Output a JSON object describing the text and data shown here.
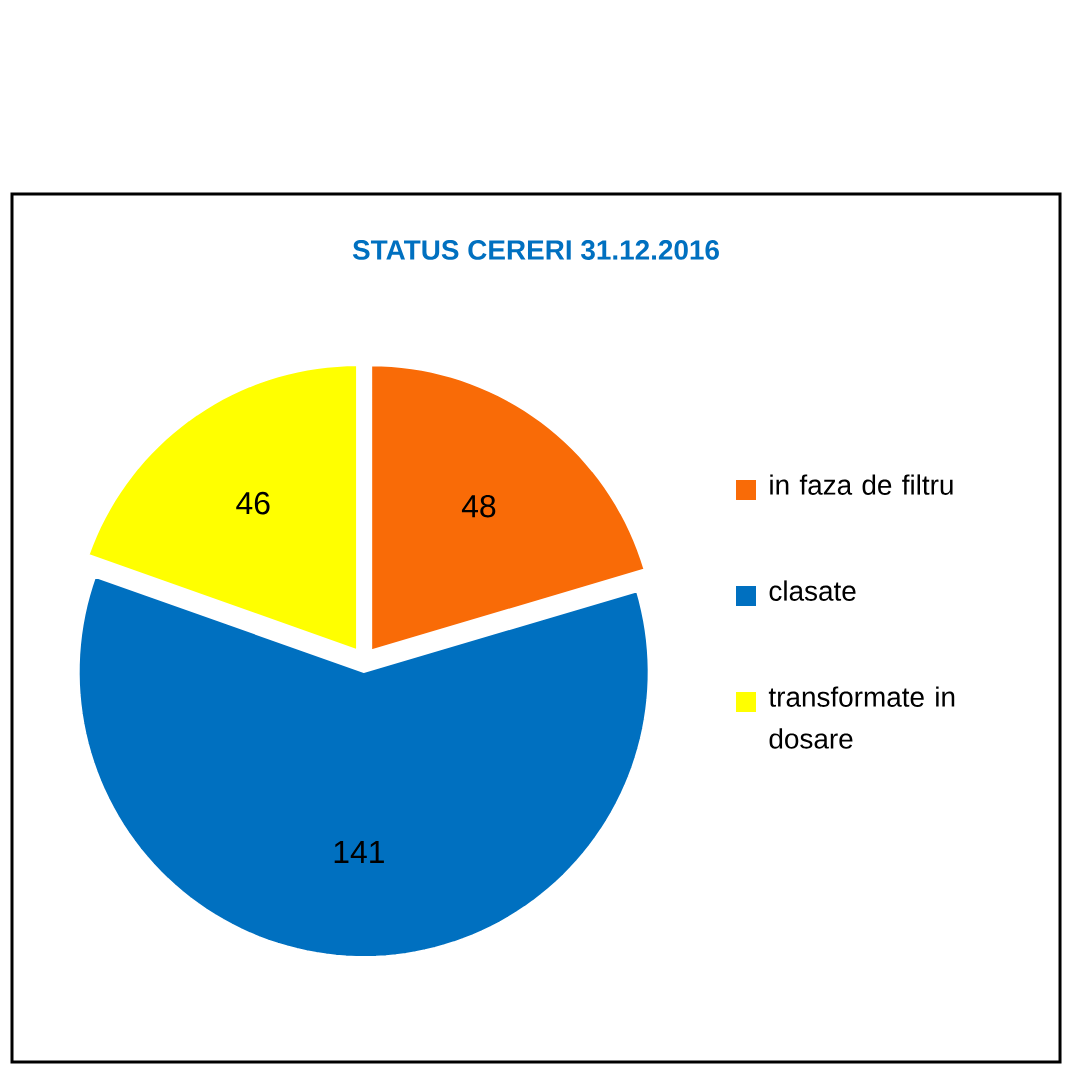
{
  "chart_data": {
    "type": "pie",
    "title": "STATUS CERERI 31.12.2016",
    "categories": [
      "in faza de filtru",
      "clasate",
      "transformate in dosare"
    ],
    "values": [
      48,
      141,
      46
    ],
    "colors": [
      "#f96b07",
      "#0070c0",
      "#ffff00"
    ],
    "data_labels": true,
    "legend": "right"
  }
}
